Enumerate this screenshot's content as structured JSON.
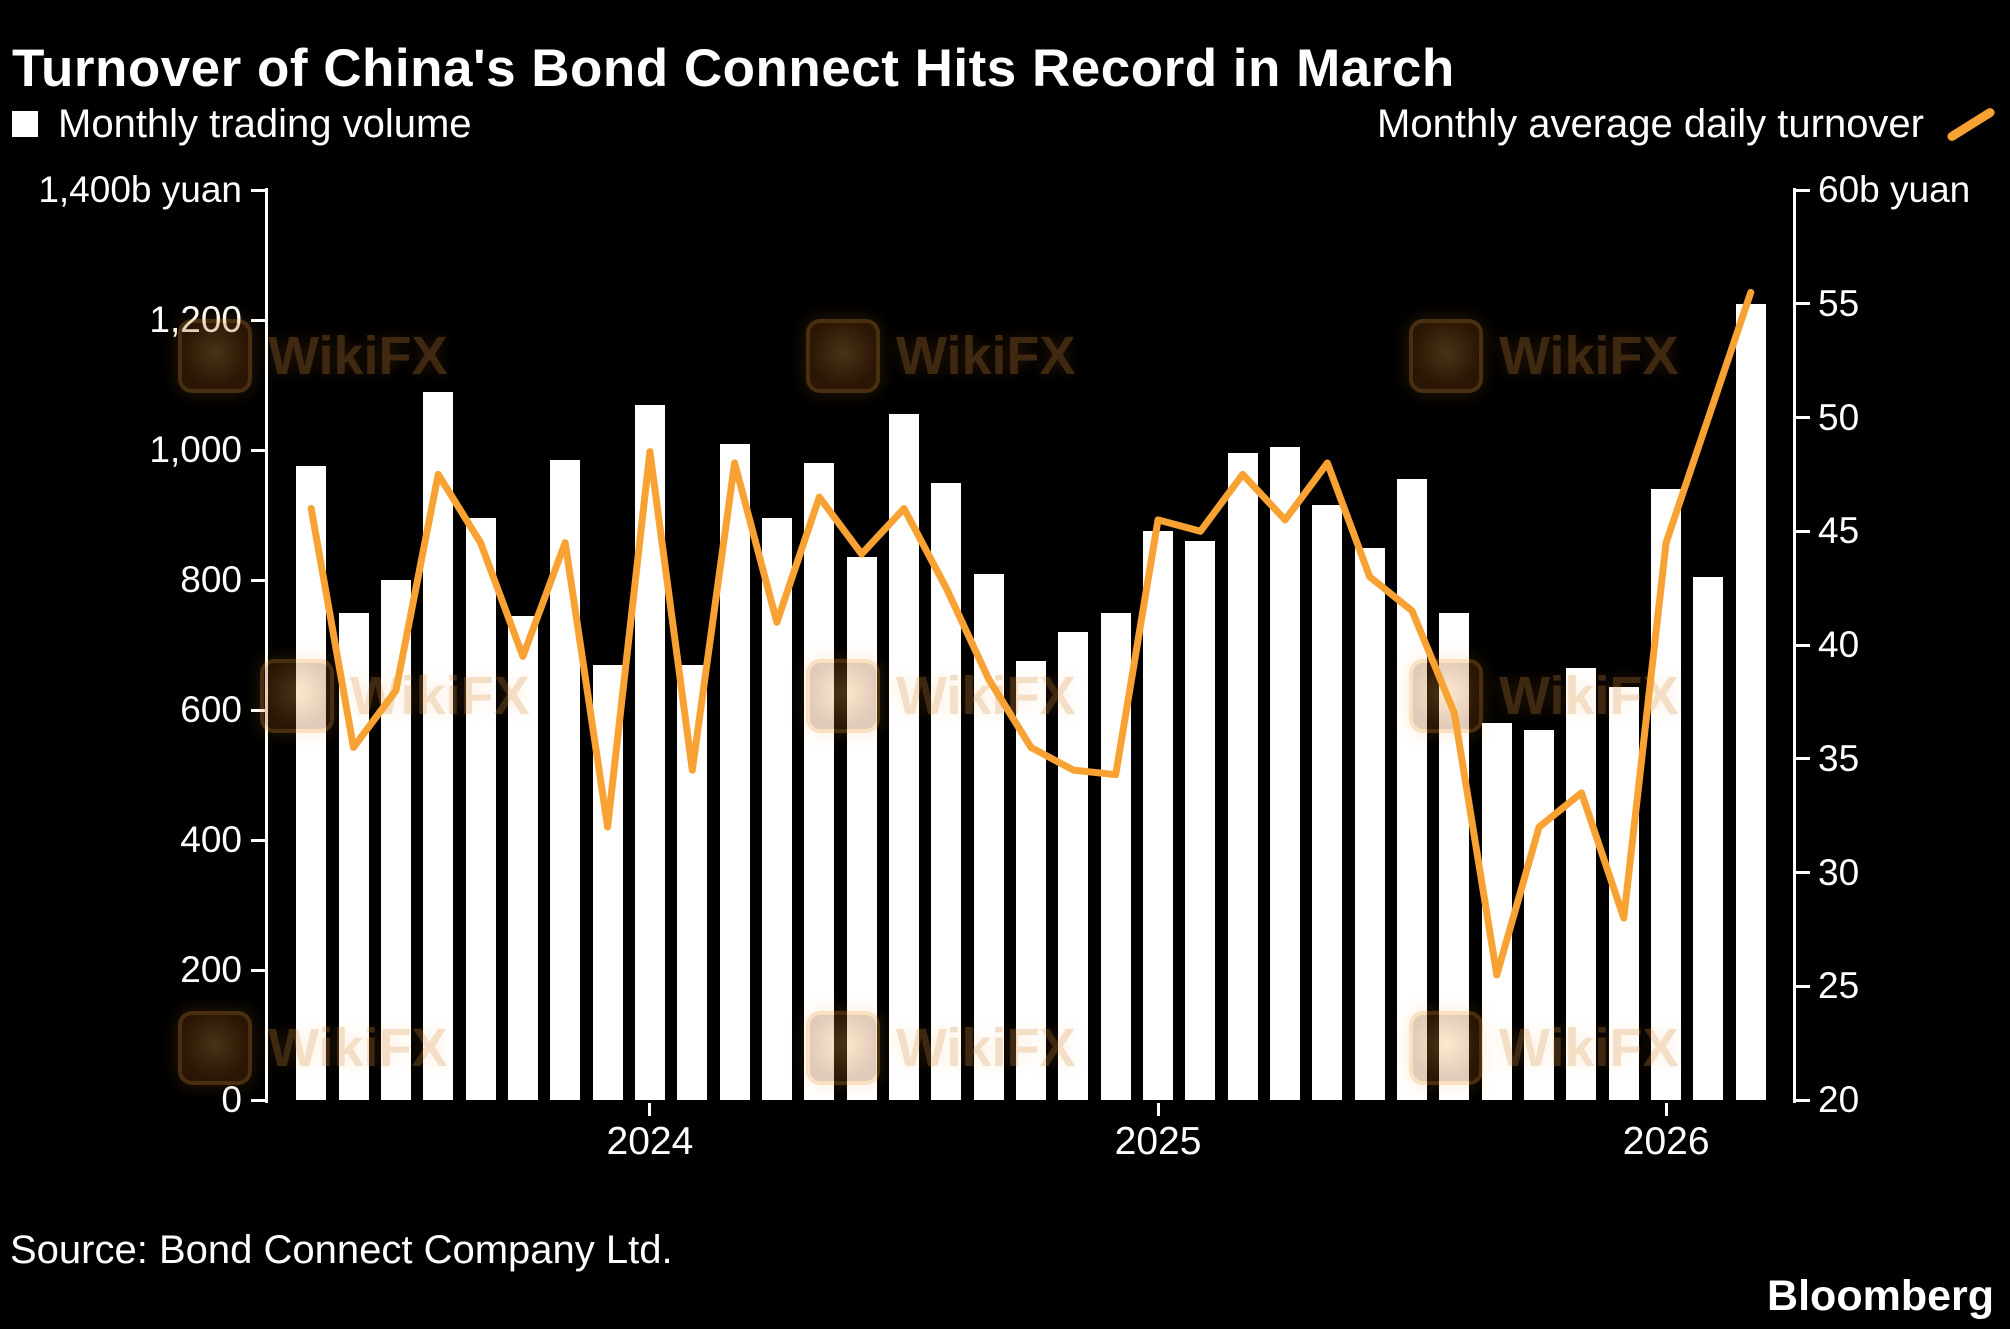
{
  "title": "Turnover of China's Bond Connect Hits Record in March",
  "legend": {
    "monthly_volume": "Monthly trading volume",
    "daily_turnover": "Monthly average daily turnover"
  },
  "source": "Source: Bond Connect Company Ltd.",
  "brand": "Bloomberg",
  "watermark": {
    "label": "WikiFX"
  },
  "colors": {
    "background": "#000000",
    "bar": "#ffffff",
    "line": "#f7a233",
    "axis": "#ffffff"
  },
  "chart_data": {
    "type": "bar",
    "title": "Turnover of China's Bond Connect Hits Record in March",
    "grid": false,
    "legend_position": "top",
    "series": [
      {
        "name": "Monthly trading volume",
        "type": "bar",
        "axis": "left",
        "unit": "b yuan",
        "values": [
          975,
          750,
          800,
          1090,
          895,
          745,
          985,
          670,
          1070,
          670,
          1010,
          895,
          980,
          835,
          1055,
          950,
          810,
          675,
          720,
          750,
          875,
          860,
          995,
          1005,
          915,
          850,
          955,
          750,
          580,
          570,
          665,
          635,
          940,
          805,
          1225
        ]
      },
      {
        "name": "Monthly average daily turnover",
        "type": "line",
        "axis": "right",
        "unit": "b yuan",
        "values": [
          46,
          35.5,
          38,
          47.5,
          44.5,
          39.5,
          44.5,
          32,
          48.5,
          34.5,
          48,
          41,
          46.5,
          44,
          46,
          42.5,
          38.5,
          35.5,
          34.5,
          34.3,
          45.5,
          45,
          47.5,
          45.5,
          48,
          43,
          41.5,
          37,
          25.5,
          32,
          33.5,
          28,
          44.5,
          50,
          55.5
        ]
      }
    ],
    "left_axis": {
      "range": [
        0,
        1400
      ],
      "ticks": [
        {
          "label": "1,400b yuan",
          "value": 1400
        },
        {
          "label": "1,200",
          "value": 1200
        },
        {
          "label": "1,000",
          "value": 1000
        },
        {
          "label": "800",
          "value": 800
        },
        {
          "label": "600",
          "value": 600
        },
        {
          "label": "400",
          "value": 400
        },
        {
          "label": "200",
          "value": 200
        },
        {
          "label": "0",
          "value": 0
        }
      ]
    },
    "right_axis": {
      "range": [
        20,
        60
      ],
      "ticks": [
        {
          "label": "60b yuan",
          "value": 60
        },
        {
          "label": "55",
          "value": 55
        },
        {
          "label": "50",
          "value": 50
        },
        {
          "label": "45",
          "value": 45
        },
        {
          "label": "40",
          "value": 40
        },
        {
          "label": "35",
          "value": 35
        },
        {
          "label": "30",
          "value": 30
        },
        {
          "label": "25",
          "value": 25
        },
        {
          "label": "20",
          "value": 20
        }
      ]
    },
    "x_axis": {
      "tick_labels": [
        "2024",
        "2025",
        "2026"
      ],
      "tick_positions": [
        8,
        20,
        32
      ]
    }
  }
}
